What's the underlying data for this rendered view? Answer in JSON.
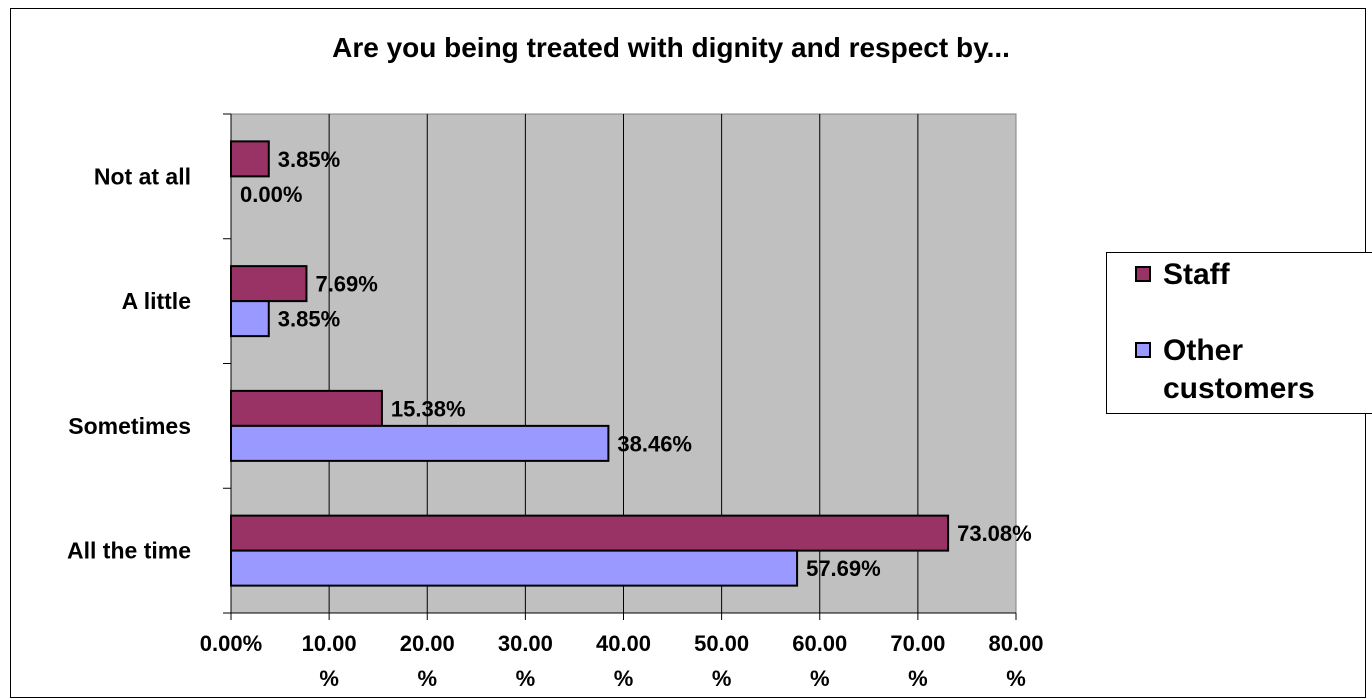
{
  "chart_data": {
    "type": "bar",
    "orientation": "horizontal",
    "title": "Are you being treated with dignity and respect by...",
    "categories": [
      "Not at all",
      "A little",
      "Sometimes",
      "All the time"
    ],
    "series": [
      {
        "name": "Staff",
        "color": "#993366",
        "values": [
          3.85,
          7.69,
          15.38,
          73.08
        ],
        "labels": [
          "3.85%",
          "7.69%",
          "15.38%",
          "73.08%"
        ]
      },
      {
        "name": "Other customers",
        "color": "#9999ff",
        "values": [
          0.0,
          3.85,
          38.46,
          57.69
        ],
        "labels": [
          "0.00%",
          "3.85%",
          "38.46%",
          "57.69%"
        ]
      }
    ],
    "xlim": [
      0,
      80
    ],
    "xticks": [
      0,
      10,
      20,
      30,
      40,
      50,
      60,
      70,
      80
    ],
    "xtick_labels": [
      [
        "0.00%"
      ],
      [
        "10.00",
        "%"
      ],
      [
        "20.00",
        "%"
      ],
      [
        "30.00",
        "%"
      ],
      [
        "40.00",
        "%"
      ],
      [
        "50.00",
        "%"
      ],
      [
        "60.00",
        "%"
      ],
      [
        "70.00",
        "%"
      ],
      [
        "80.00",
        "%"
      ]
    ],
    "plot_background": "#c0c0c0",
    "grid": true,
    "legend_position": "right"
  },
  "legend": {
    "staff_label": "Staff",
    "other_label": "Other customers"
  }
}
